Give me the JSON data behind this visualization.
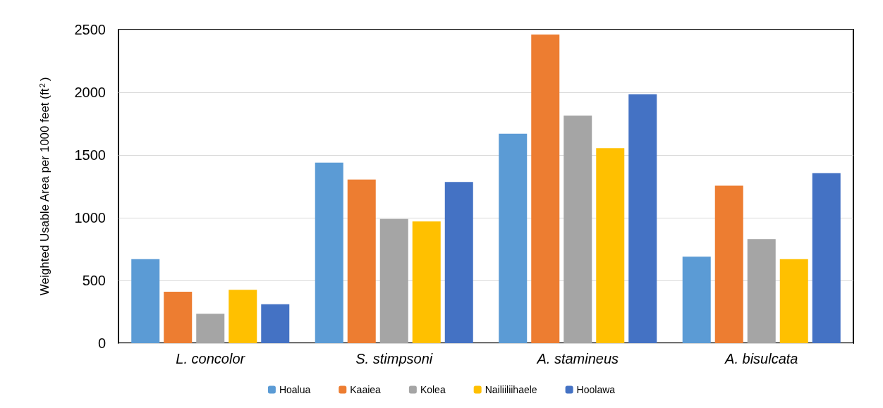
{
  "chart_data": {
    "type": "bar",
    "ylabel": "Weighted Usable Area per 1000 feet (ft$^{2}$)",
    "categories": [
      "L. concolor",
      "S. stimpsoni",
      "A. stamineus",
      "A. bisulcata"
    ],
    "series": [
      {
        "name": "Hoalua",
        "color": "#5b9bd5",
        "values": [
          670,
          1440,
          1670,
          690
        ]
      },
      {
        "name": "Kaaiea",
        "color": "#ed7d31",
        "values": [
          410,
          1305,
          2460,
          1255
        ]
      },
      {
        "name": "Kolea",
        "color": "#a5a5a5",
        "values": [
          235,
          990,
          1815,
          830
        ]
      },
      {
        "name": "Nailiiliihaele",
        "color": "#ffc000",
        "values": [
          425,
          970,
          1555,
          670
        ]
      },
      {
        "name": "Hoolawa",
        "color": "#4472c4",
        "values": [
          310,
          1285,
          1985,
          1355
        ]
      }
    ],
    "ylim": [
      0,
      2500
    ],
    "yticks": [
      0,
      500,
      1000,
      1500,
      2000,
      2500
    ],
    "grid": "y",
    "legend": "bottom"
  }
}
